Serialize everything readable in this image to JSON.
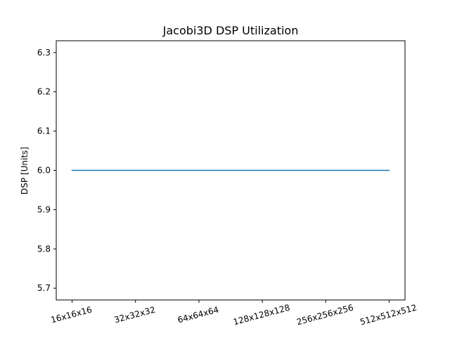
{
  "chart_data": {
    "type": "line",
    "title": "Jacobi3D DSP Utilization",
    "xlabel": "",
    "ylabel": "DSP [Units]",
    "categories": [
      "16x16x16",
      "32x32x32",
      "64x64x64",
      "128x128x128",
      "256x256x256",
      "512x512x512"
    ],
    "series": [
      {
        "values": [
          6.0,
          6.0,
          6.0,
          6.0,
          6.0,
          6.0
        ],
        "color": "#1f77b4"
      }
    ],
    "ylim": [
      5.67,
      6.33
    ],
    "yticks": [
      5.7,
      5.8,
      5.9,
      6.0,
      6.1,
      6.2,
      6.3
    ],
    "ytick_labels": [
      "5.7",
      "5.8",
      "5.9",
      "6.0",
      "6.1",
      "6.2",
      "6.3"
    ],
    "xtick_rotation": "15",
    "grid": false,
    "legend": "none"
  }
}
